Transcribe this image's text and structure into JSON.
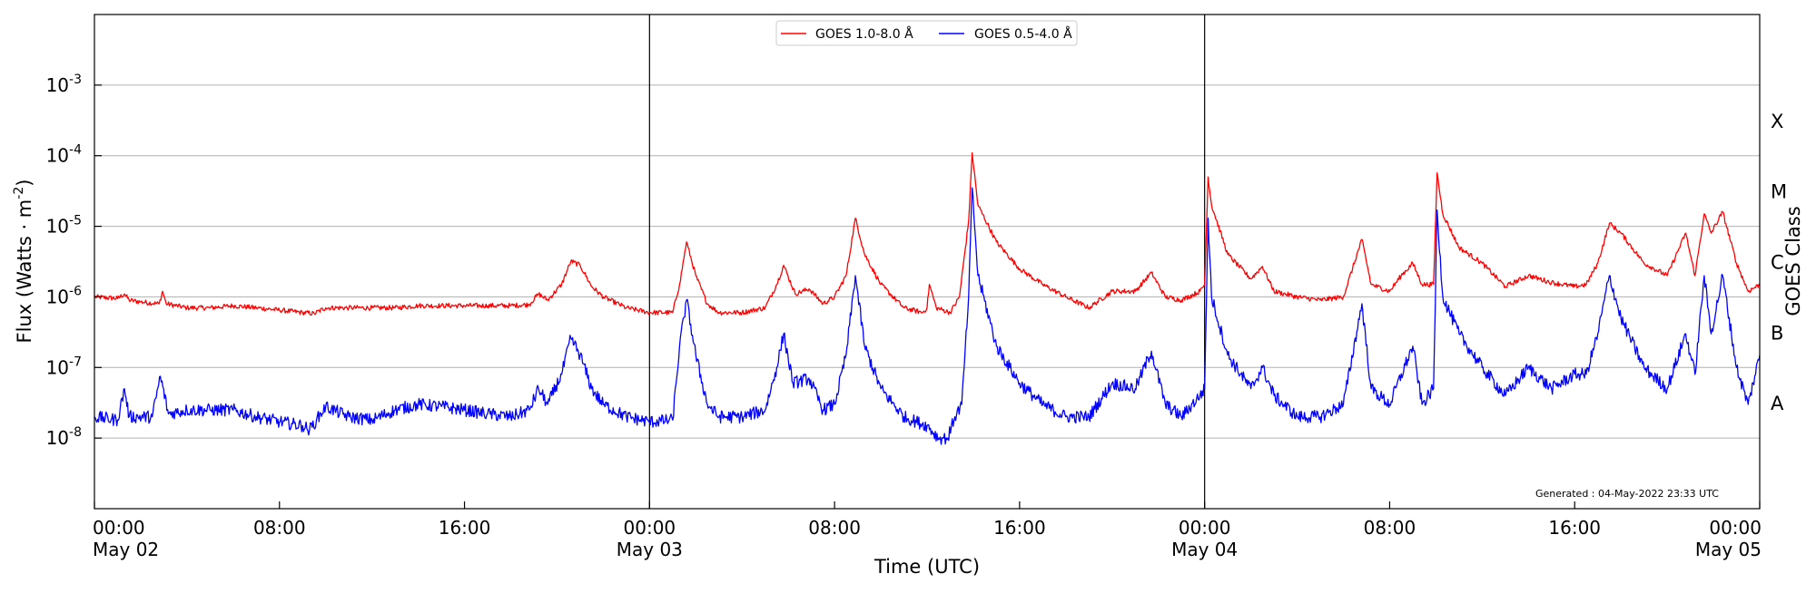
{
  "chart_data": {
    "type": "line",
    "xlabel": "Time (UTC)",
    "ylabel": "Flux (Watts · m",
    "ylabel_sup": "-2",
    "ylabel_end": ")",
    "right_label": "GOES Class",
    "y_scale": "log",
    "ylim": [
      1e-09,
      0.01
    ],
    "y_ticks": [
      {
        "exp": "-8",
        "value": 1e-08
      },
      {
        "exp": "-7",
        "value": 1e-07
      },
      {
        "exp": "-6",
        "value": 1e-06
      },
      {
        "exp": "-5",
        "value": 1e-05
      },
      {
        "exp": "-4",
        "value": 0.0001
      },
      {
        "exp": "-3",
        "value": 0.001
      }
    ],
    "y_tick_base": "10",
    "grid": "horizontal",
    "xlim_hours": [
      0,
      72
    ],
    "x_ticks": [
      {
        "hour": 0,
        "time": "00:00",
        "date": "May 02"
      },
      {
        "hour": 8,
        "time": "08:00",
        "date": ""
      },
      {
        "hour": 16,
        "time": "16:00",
        "date": ""
      },
      {
        "hour": 24,
        "time": "00:00",
        "date": "May 03"
      },
      {
        "hour": 32,
        "time": "08:00",
        "date": ""
      },
      {
        "hour": 40,
        "time": "16:00",
        "date": ""
      },
      {
        "hour": 48,
        "time": "00:00",
        "date": "May 04"
      },
      {
        "hour": 56,
        "time": "08:00",
        "date": ""
      },
      {
        "hour": 64,
        "time": "16:00",
        "date": ""
      },
      {
        "hour": 72,
        "time": "00:00",
        "date": "May 05"
      }
    ],
    "day_lines_hours": [
      24,
      48
    ],
    "goes_classes": [
      {
        "label": "A",
        "value": 3.16e-08
      },
      {
        "label": "B",
        "value": 3.16e-07
      },
      {
        "label": "C",
        "value": 3.16e-06
      },
      {
        "label": "M",
        "value": 3.16e-05
      },
      {
        "label": "X",
        "value": 0.000316
      }
    ],
    "legend_position": "top-center",
    "annotation": "Generated : 04-May-2022 23:33 UTC",
    "series": [
      {
        "name": "GOES 1.0-8.0 Å",
        "color": "#ff0000",
        "points": [
          [
            0,
            1e-06
          ],
          [
            1,
            9.5e-07
          ],
          [
            1.3,
            1.1e-06
          ],
          [
            1.5,
            9e-07
          ],
          [
            2,
            8.5e-07
          ],
          [
            2.8,
            8e-07
          ],
          [
            2.95,
            1.2e-06
          ],
          [
            3.1,
            8e-07
          ],
          [
            4,
            7e-07
          ],
          [
            5,
            7e-07
          ],
          [
            6,
            7.5e-07
          ],
          [
            7,
            7e-07
          ],
          [
            8,
            6.5e-07
          ],
          [
            9,
            6e-07
          ],
          [
            9.5,
            5.8e-07
          ],
          [
            10,
            7e-07
          ],
          [
            11,
            7e-07
          ],
          [
            12,
            7e-07
          ],
          [
            13,
            7e-07
          ],
          [
            14,
            7.5e-07
          ],
          [
            15,
            7.5e-07
          ],
          [
            16,
            7.5e-07
          ],
          [
            17,
            7.5e-07
          ],
          [
            18,
            7.5e-07
          ],
          [
            18.8,
            7.8e-07
          ],
          [
            19.2,
            1.1e-06
          ],
          [
            19.6,
            9e-07
          ],
          [
            20.2,
            1.5e-06
          ],
          [
            20.6,
            3.2e-06
          ],
          [
            21,
            2.8e-06
          ],
          [
            21.5,
            1.4e-06
          ],
          [
            22,
            1e-06
          ],
          [
            23,
            7e-07
          ],
          [
            24,
            6e-07
          ],
          [
            25,
            6e-07
          ],
          [
            25.3,
            1.5e-06
          ],
          [
            25.6,
            6e-06
          ],
          [
            26,
            2e-06
          ],
          [
            26.5,
            8e-07
          ],
          [
            27,
            6e-07
          ],
          [
            28,
            6e-07
          ],
          [
            29,
            7e-07
          ],
          [
            29.5,
            1.5e-06
          ],
          [
            29.8,
            2.8e-06
          ],
          [
            30.3,
            1.1e-06
          ],
          [
            30.9,
            1.3e-06
          ],
          [
            31.5,
            8e-07
          ],
          [
            32,
            1e-06
          ],
          [
            32.5,
            2e-06
          ],
          [
            32.9,
            1.3e-05
          ],
          [
            33.3,
            4e-06
          ],
          [
            34,
            1.5e-06
          ],
          [
            35,
            7e-07
          ],
          [
            35.8,
            6e-07
          ],
          [
            36,
            7e-07
          ],
          [
            36.1,
            1.5e-06
          ],
          [
            36.4,
            7e-07
          ],
          [
            37,
            6e-07
          ],
          [
            37.4,
            1e-06
          ],
          [
            37.8,
            1.2e-05
          ],
          [
            37.95,
            0.00011
          ],
          [
            38.2,
            2e-05
          ],
          [
            39,
            6e-06
          ],
          [
            40,
            2.5e-06
          ],
          [
            41,
            1.5e-06
          ],
          [
            42,
            1e-06
          ],
          [
            43,
            7e-07
          ],
          [
            44,
            1.2e-06
          ],
          [
            45,
            1.2e-06
          ],
          [
            45.7,
            2.2e-06
          ],
          [
            46.3,
            1e-06
          ],
          [
            47,
            9e-07
          ],
          [
            47.8,
            1.2e-06
          ],
          [
            48,
            1.5e-06
          ],
          [
            48.15,
            5e-05
          ],
          [
            48.3,
            2e-05
          ],
          [
            49,
            4e-06
          ],
          [
            50,
            1.8e-06
          ],
          [
            50.5,
            2.7e-06
          ],
          [
            51,
            1.2e-06
          ],
          [
            52,
            1e-06
          ],
          [
            53,
            9e-07
          ],
          [
            54,
            1e-06
          ],
          [
            54.8,
            6.5e-06
          ],
          [
            55.2,
            1.5e-06
          ],
          [
            56,
            1.2e-06
          ],
          [
            56.5,
            2e-06
          ],
          [
            57,
            3e-06
          ],
          [
            57.4,
            1.5e-06
          ],
          [
            57.9,
            1.5e-06
          ],
          [
            58.05,
            5.7e-05
          ],
          [
            58.3,
            1.5e-05
          ],
          [
            59,
            5e-06
          ],
          [
            60,
            3e-06
          ],
          [
            61,
            1.4e-06
          ],
          [
            62,
            2e-06
          ],
          [
            63,
            1.6e-06
          ],
          [
            64,
            1.4e-06
          ],
          [
            64.5,
            1.5e-06
          ],
          [
            65,
            3e-06
          ],
          [
            65.5,
            1.1e-05
          ],
          [
            66,
            8e-06
          ],
          [
            67,
            3e-06
          ],
          [
            68,
            2e-06
          ],
          [
            68.8,
            8e-06
          ],
          [
            69.2,
            2e-06
          ],
          [
            69.6,
            1.5e-05
          ],
          [
            69.9,
            8e-06
          ],
          [
            70.4,
            1.6e-05
          ],
          [
            71,
            3e-06
          ],
          [
            71.5,
            1.2e-06
          ],
          [
            72,
            1.5e-06
          ]
        ]
      },
      {
        "name": "GOES 0.5-4.0 Å",
        "color": "#0000ff",
        "points": [
          [
            0,
            2e-08
          ],
          [
            1,
            1.8e-08
          ],
          [
            1.3,
            5e-08
          ],
          [
            1.5,
            2e-08
          ],
          [
            2.5,
            2e-08
          ],
          [
            2.85,
            7.5e-08
          ],
          [
            3.2,
            2.2e-08
          ],
          [
            4,
            2.5e-08
          ],
          [
            5,
            2.5e-08
          ],
          [
            6,
            2.5e-08
          ],
          [
            7,
            2e-08
          ],
          [
            8,
            1.7e-08
          ],
          [
            9,
            1.5e-08
          ],
          [
            9.3,
            1.3e-08
          ],
          [
            9.6,
            1.8e-08
          ],
          [
            10,
            2.8e-08
          ],
          [
            11,
            2e-08
          ],
          [
            12,
            1.8e-08
          ],
          [
            13,
            2.5e-08
          ],
          [
            14,
            3e-08
          ],
          [
            15,
            2.8e-08
          ],
          [
            16,
            2.5e-08
          ],
          [
            17,
            2.2e-08
          ],
          [
            18,
            2e-08
          ],
          [
            18.8,
            2.5e-08
          ],
          [
            19.2,
            5e-08
          ],
          [
            19.6,
            3e-08
          ],
          [
            20.2,
            8e-08
          ],
          [
            20.6,
            2.6e-07
          ],
          [
            21,
            1.5e-07
          ],
          [
            21.5,
            5e-08
          ],
          [
            22,
            3e-08
          ],
          [
            23,
            2e-08
          ],
          [
            24,
            1.7e-08
          ],
          [
            25,
            1.8e-08
          ],
          [
            25.3,
            2e-07
          ],
          [
            25.6,
            9e-07
          ],
          [
            26,
            1.5e-07
          ],
          [
            26.5,
            3e-08
          ],
          [
            27,
            2e-08
          ],
          [
            28,
            2e-08
          ],
          [
            29,
            2.5e-08
          ],
          [
            29.5,
            1e-07
          ],
          [
            29.8,
            3e-07
          ],
          [
            30.2,
            6e-08
          ],
          [
            30.9,
            7e-08
          ],
          [
            31.5,
            2.5e-08
          ],
          [
            32,
            3e-08
          ],
          [
            32.5,
            1.5e-07
          ],
          [
            32.9,
            2e-06
          ],
          [
            33.3,
            2e-07
          ],
          [
            34,
            5e-08
          ],
          [
            35,
            2e-08
          ],
          [
            36,
            1.5e-08
          ],
          [
            36.5,
            1e-08
          ],
          [
            36.9,
            1e-08
          ],
          [
            37.2,
            2e-08
          ],
          [
            37.5,
            3e-08
          ],
          [
            37.8,
            1e-06
          ],
          [
            37.95,
            3.5e-05
          ],
          [
            38.2,
            2e-06
          ],
          [
            39,
            2e-07
          ],
          [
            40,
            6e-08
          ],
          [
            41,
            3e-08
          ],
          [
            42,
            2e-08
          ],
          [
            43,
            2e-08
          ],
          [
            44,
            6e-08
          ],
          [
            45,
            5e-08
          ],
          [
            45.7,
            1.7e-07
          ],
          [
            46.3,
            3e-08
          ],
          [
            47,
            2e-08
          ],
          [
            47.8,
            4e-08
          ],
          [
            48,
            5e-08
          ],
          [
            48.15,
            1.3e-05
          ],
          [
            48.3,
            1e-06
          ],
          [
            49,
            1.5e-07
          ],
          [
            50,
            5e-08
          ],
          [
            50.5,
            1e-07
          ],
          [
            51,
            4e-08
          ],
          [
            52,
            2e-08
          ],
          [
            53,
            2e-08
          ],
          [
            54,
            3e-08
          ],
          [
            54.8,
            8e-07
          ],
          [
            55.2,
            5e-08
          ],
          [
            56,
            3e-08
          ],
          [
            57,
            2e-07
          ],
          [
            57.4,
            3e-08
          ],
          [
            57.9,
            5e-08
          ],
          [
            58.05,
            1.7e-05
          ],
          [
            58.3,
            1e-06
          ],
          [
            59,
            3e-07
          ],
          [
            60,
            1e-07
          ],
          [
            61,
            4e-08
          ],
          [
            62,
            1e-07
          ],
          [
            63,
            5e-08
          ],
          [
            64,
            8e-08
          ],
          [
            64.5,
            8e-08
          ],
          [
            65,
            3e-07
          ],
          [
            65.5,
            2e-06
          ],
          [
            66,
            5e-07
          ],
          [
            67,
            1e-07
          ],
          [
            68,
            5e-08
          ],
          [
            68.8,
            3e-07
          ],
          [
            69.2,
            8e-08
          ],
          [
            69.6,
            2e-06
          ],
          [
            69.9,
            3e-07
          ],
          [
            70.4,
            2e-06
          ],
          [
            71,
            1e-07
          ],
          [
            71.5,
            3e-08
          ],
          [
            72,
            1.5e-07
          ]
        ]
      }
    ]
  }
}
